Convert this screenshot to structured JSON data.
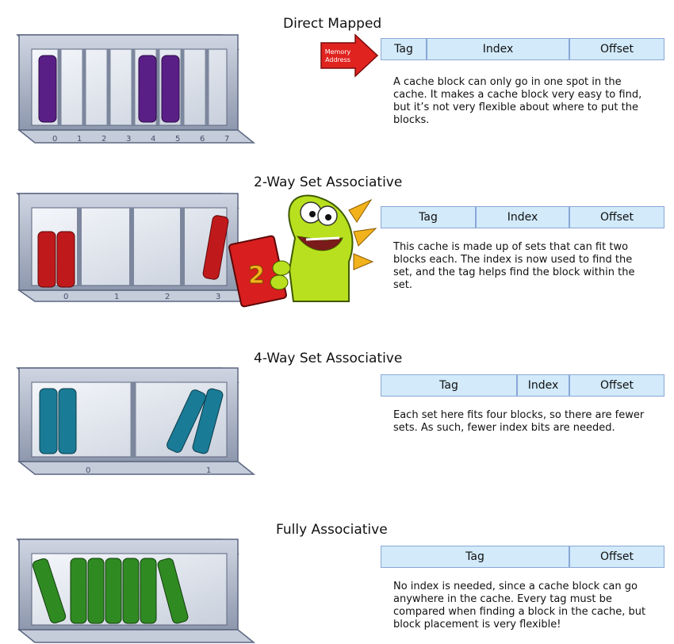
{
  "sections": [
    {
      "title": "Direct Mapped",
      "fields": [
        "Tag",
        "Index",
        "Offset"
      ],
      "description": "A cache block can only go in one spot in the cache. It makes a cache block very easy to find, but it’s not very flexible about where to put the blocks.",
      "shelf_numbers": [
        "0",
        "1",
        "2",
        "3",
        "4",
        "5",
        "6",
        "7"
      ],
      "book_color": "#5a1f86"
    },
    {
      "title": "2-Way Set Associative",
      "fields": [
        "Tag",
        "Index",
        "Offset"
      ],
      "description": "This cache is made up of sets that can fit two blocks each. The index is now used to find the set, and the tag helps find the block within the set.",
      "shelf_numbers": [
        "0",
        "1",
        "2",
        "3"
      ],
      "book_color": "#c0191c"
    },
    {
      "title": "4-Way Set Associative",
      "fields": [
        "Tag",
        "Index",
        "Offset"
      ],
      "description": "Each set here fits four blocks, so there are fewer sets. As such, fewer index bits are needed.",
      "shelf_numbers": [
        "0",
        "1"
      ],
      "book_color": "#1a7b96"
    },
    {
      "title": "Fully Associative",
      "fields": [
        "Tag",
        "Offset"
      ],
      "description": "No index is needed, since a cache block can go anywhere in the cache. Every tag must be compared when finding a block in the cache, but block placement is very flexible!",
      "book_color": "#2f8a22"
    }
  ],
  "memory_arrow": {
    "line1": "Memory",
    "line2": "Address"
  },
  "mascot_book_label": "2",
  "colors": {
    "field_bg": "#d2eafa",
    "field_border": "#8aa7d6",
    "shelf": "#aab4c8"
  }
}
